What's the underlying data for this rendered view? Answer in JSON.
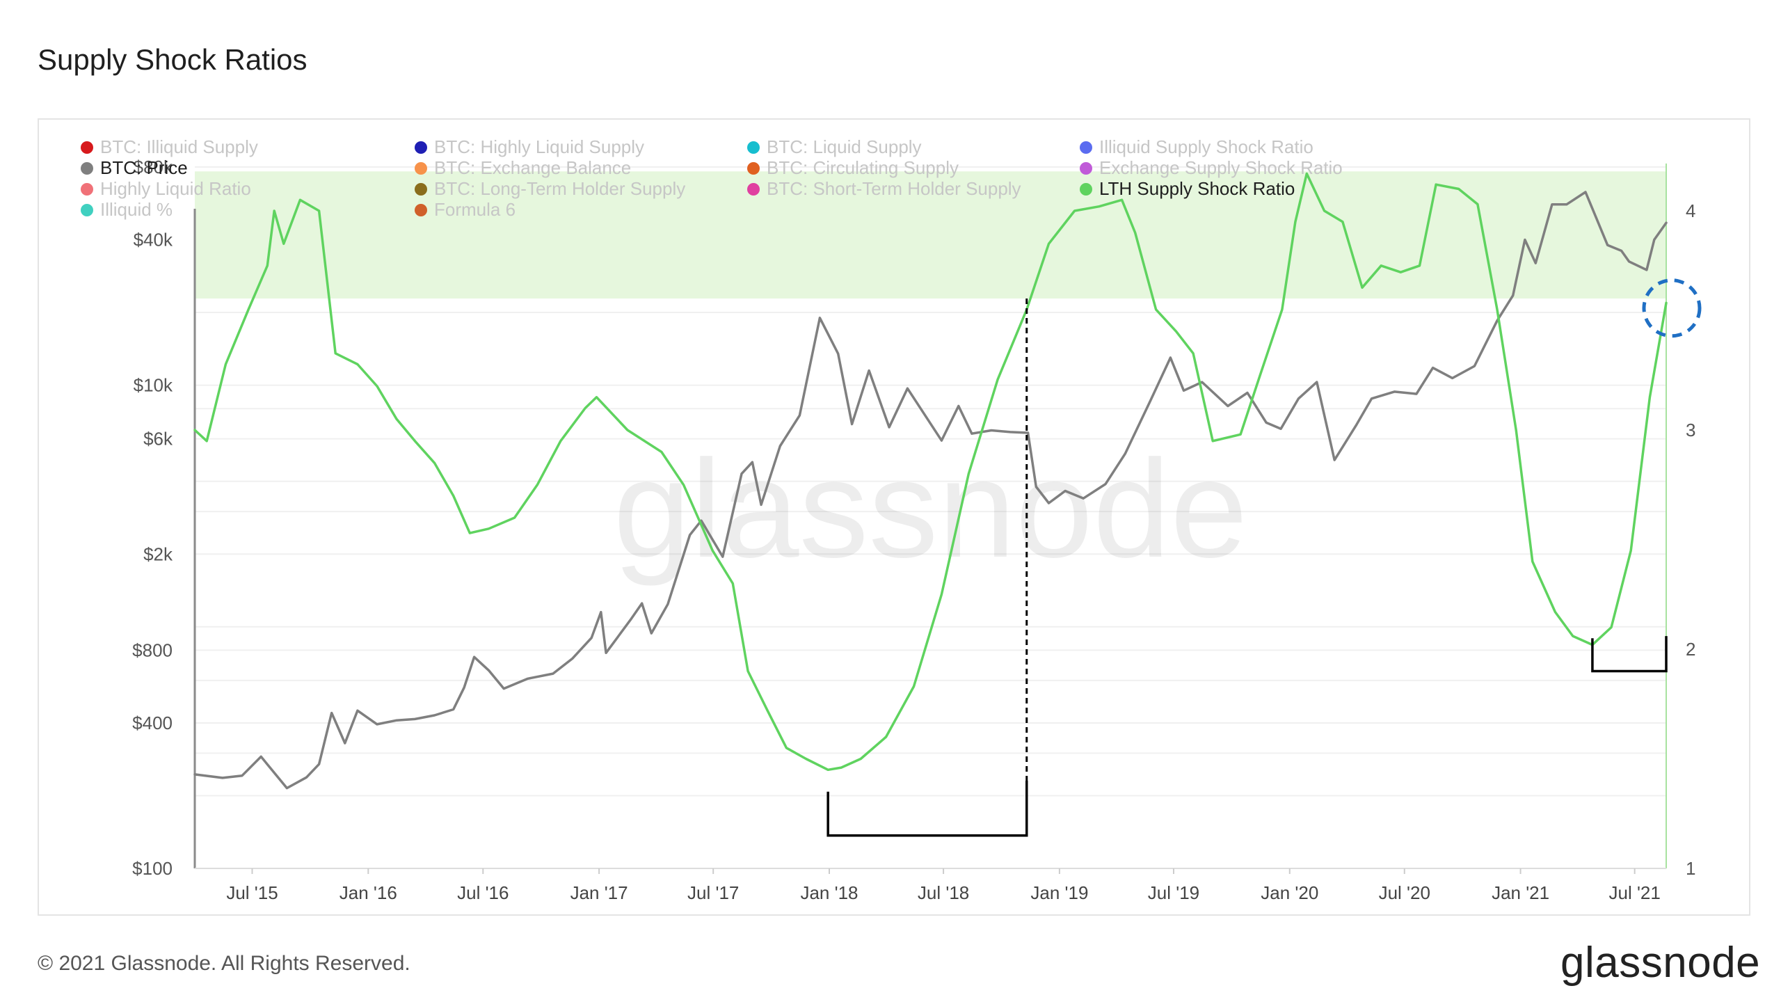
{
  "page": {
    "title": "Supply Shock Ratios",
    "copyright": "© 2021 Glassnode. All Rights Reserved.",
    "brand": "glassnode",
    "watermark": "glassnode"
  },
  "legend": [
    {
      "label": "BTC: Illiquid Supply",
      "color": "#d7191c",
      "active": false
    },
    {
      "label": "BTC: Highly Liquid Supply",
      "color": "#1f1fb4",
      "active": false
    },
    {
      "label": "BTC: Liquid Supply",
      "color": "#17becf",
      "active": false
    },
    {
      "label": "Illiquid Supply Shock Ratio",
      "color": "#5b6cf0",
      "active": false
    },
    {
      "label": "BTC: Price",
      "color": "#7f7f7f",
      "active": true
    },
    {
      "label": "BTC: Exchange Balance",
      "color": "#f7924a",
      "active": false
    },
    {
      "label": "BTC: Circulating Supply",
      "color": "#e06020",
      "active": false
    },
    {
      "label": "Exchange Supply Shock Ratio",
      "color": "#c05ad8",
      "active": false
    },
    {
      "label": "Highly Liquid Ratio",
      "color": "#f07178",
      "active": false
    },
    {
      "label": "BTC: Long-Term Holder Supply",
      "color": "#8a6d1c",
      "active": false
    },
    {
      "label": "BTC: Short-Term Holder Supply",
      "color": "#e040a0",
      "active": false
    },
    {
      "label": "LTH Supply Shock Ratio",
      "color": "#5fd35f",
      "active": true
    },
    {
      "label": "Illiquid %",
      "color": "#40d0c0",
      "active": false
    },
    {
      "label": "Formula 6",
      "color": "#d0602a",
      "active": false
    }
  ],
  "chart_data": {
    "type": "line",
    "x_ticks": [
      "Jul '15",
      "Jan '16",
      "Jul '16",
      "Jan '17",
      "Jul '17",
      "Jan '18",
      "Jul '18",
      "Jan '19",
      "Jul '19",
      "Jan '20",
      "Jul '20",
      "Jan '21",
      "Jul '21"
    ],
    "x_range": [
      "2015-04-01",
      "2021-08-20"
    ],
    "y_left": {
      "ticks": [
        "$100",
        "$400",
        "$800",
        "$2k",
        "$6k",
        "$10k",
        "$40k",
        "$80k"
      ],
      "tick_values": [
        100,
        400,
        800,
        2000,
        6000,
        10000,
        40000,
        80000
      ],
      "scale": "log",
      "range": [
        100,
        80000
      ]
    },
    "y_right": {
      "ticks": [
        "1",
        "2",
        "3",
        "4"
      ],
      "tick_values": [
        1,
        2,
        3,
        4
      ],
      "range": [
        1,
        4.2
      ]
    },
    "shaded_band": {
      "axis": "right",
      "from": 3.6,
      "to": 4.18,
      "color": "#e6f7dd"
    },
    "colors": {
      "price": "#7f7f7f",
      "ratio": "#5fd35f",
      "annotation": "#000000",
      "circle": "#1f6fc4"
    },
    "series": [
      {
        "name": "BTC: Price",
        "axis": "left",
        "points": [
          [
            "2015-04-01",
            245
          ],
          [
            "2015-05-15",
            237
          ],
          [
            "2015-06-15",
            242
          ],
          [
            "2015-07-15",
            290
          ],
          [
            "2015-08-25",
            215
          ],
          [
            "2015-09-25",
            238
          ],
          [
            "2015-10-15",
            270
          ],
          [
            "2015-11-04",
            440
          ],
          [
            "2015-11-25",
            330
          ],
          [
            "2015-12-15",
            450
          ],
          [
            "2016-01-15",
            395
          ],
          [
            "2016-02-15",
            410
          ],
          [
            "2016-03-15",
            415
          ],
          [
            "2016-04-15",
            430
          ],
          [
            "2016-05-15",
            455
          ],
          [
            "2016-06-01",
            560
          ],
          [
            "2016-06-17",
            750
          ],
          [
            "2016-07-10",
            660
          ],
          [
            "2016-08-03",
            555
          ],
          [
            "2016-09-10",
            610
          ],
          [
            "2016-10-20",
            640
          ],
          [
            "2016-11-20",
            740
          ],
          [
            "2016-12-20",
            900
          ],
          [
            "2017-01-04",
            1150
          ],
          [
            "2017-01-12",
            780
          ],
          [
            "2017-02-20",
            1070
          ],
          [
            "2017-03-10",
            1250
          ],
          [
            "2017-03-25",
            940
          ],
          [
            "2017-04-20",
            1240
          ],
          [
            "2017-05-25",
            2400
          ],
          [
            "2017-06-12",
            2750
          ],
          [
            "2017-07-16",
            1950
          ],
          [
            "2017-08-15",
            4300
          ],
          [
            "2017-09-01",
            4800
          ],
          [
            "2017-09-15",
            3200
          ],
          [
            "2017-10-15",
            5600
          ],
          [
            "2017-11-15",
            7500
          ],
          [
            "2017-12-17",
            19000
          ],
          [
            "2018-01-15",
            13500
          ],
          [
            "2018-02-06",
            6900
          ],
          [
            "2018-03-05",
            11500
          ],
          [
            "2018-04-06",
            6700
          ],
          [
            "2018-05-05",
            9700
          ],
          [
            "2018-06-28",
            5900
          ],
          [
            "2018-07-25",
            8200
          ],
          [
            "2018-08-15",
            6300
          ],
          [
            "2018-09-15",
            6500
          ],
          [
            "2018-10-15",
            6400
          ],
          [
            "2018-11-12",
            6350
          ],
          [
            "2018-11-25",
            3800
          ],
          [
            "2018-12-15",
            3250
          ],
          [
            "2019-01-10",
            3650
          ],
          [
            "2019-02-08",
            3400
          ],
          [
            "2019-03-15",
            3900
          ],
          [
            "2019-04-15",
            5200
          ],
          [
            "2019-05-25",
            8600
          ],
          [
            "2019-06-26",
            13000
          ],
          [
            "2019-07-17",
            9500
          ],
          [
            "2019-08-15",
            10300
          ],
          [
            "2019-09-25",
            8200
          ],
          [
            "2019-10-26",
            9300
          ],
          [
            "2019-11-25",
            7000
          ],
          [
            "2019-12-18",
            6600
          ],
          [
            "2020-01-15",
            8800
          ],
          [
            "2020-02-13",
            10300
          ],
          [
            "2020-03-12",
            4900
          ],
          [
            "2020-04-15",
            6800
          ],
          [
            "2020-05-10",
            8800
          ],
          [
            "2020-06-15",
            9400
          ],
          [
            "2020-07-20",
            9200
          ],
          [
            "2020-08-15",
            11800
          ],
          [
            "2020-09-15",
            10700
          ],
          [
            "2020-10-20",
            12000
          ],
          [
            "2020-11-25",
            18500
          ],
          [
            "2020-12-20",
            23500
          ],
          [
            "2021-01-08",
            40000
          ],
          [
            "2021-01-25",
            32000
          ],
          [
            "2021-02-20",
            56000
          ],
          [
            "2021-03-15",
            56000
          ],
          [
            "2021-04-14",
            63000
          ],
          [
            "2021-05-19",
            38000
          ],
          [
            "2021-06-10",
            36000
          ],
          [
            "2021-06-22",
            32500
          ],
          [
            "2021-07-20",
            30000
          ],
          [
            "2021-08-01",
            40000
          ],
          [
            "2021-08-20",
            47000
          ]
        ]
      },
      {
        "name": "LTH Supply Shock Ratio",
        "axis": "right",
        "points": [
          [
            "2015-04-01",
            3.0
          ],
          [
            "2015-04-20",
            2.95
          ],
          [
            "2015-05-20",
            3.3
          ],
          [
            "2015-06-25",
            3.55
          ],
          [
            "2015-07-25",
            3.75
          ],
          [
            "2015-08-05",
            4.0
          ],
          [
            "2015-08-20",
            3.85
          ],
          [
            "2015-09-15",
            4.05
          ],
          [
            "2015-10-15",
            4.0
          ],
          [
            "2015-11-10",
            3.35
          ],
          [
            "2015-12-15",
            3.3
          ],
          [
            "2016-01-15",
            3.2
          ],
          [
            "2016-02-15",
            3.05
          ],
          [
            "2016-03-15",
            2.95
          ],
          [
            "2016-04-15",
            2.85
          ],
          [
            "2016-05-15",
            2.7
          ],
          [
            "2016-06-10",
            2.53
          ],
          [
            "2016-07-10",
            2.55
          ],
          [
            "2016-08-20",
            2.6
          ],
          [
            "2016-09-25",
            2.75
          ],
          [
            "2016-11-01",
            2.95
          ],
          [
            "2016-12-10",
            3.1
          ],
          [
            "2016-12-28",
            3.15
          ],
          [
            "2017-02-15",
            3.0
          ],
          [
            "2017-04-10",
            2.9
          ],
          [
            "2017-05-15",
            2.75
          ],
          [
            "2017-06-30",
            2.45
          ],
          [
            "2017-08-01",
            2.3
          ],
          [
            "2017-08-25",
            1.9
          ],
          [
            "2017-09-25",
            1.72
          ],
          [
            "2017-10-25",
            1.55
          ],
          [
            "2017-11-25",
            1.5
          ],
          [
            "2017-12-30",
            1.45
          ],
          [
            "2018-01-20",
            1.46
          ],
          [
            "2018-02-20",
            1.5
          ],
          [
            "2018-04-01",
            1.6
          ],
          [
            "2018-05-15",
            1.83
          ],
          [
            "2018-06-28",
            2.25
          ],
          [
            "2018-08-10",
            2.8
          ],
          [
            "2018-09-25",
            3.23
          ],
          [
            "2018-11-10",
            3.55
          ],
          [
            "2018-12-15",
            3.85
          ],
          [
            "2019-01-25",
            4.0
          ],
          [
            "2019-03-05",
            4.02
          ],
          [
            "2019-04-10",
            4.05
          ],
          [
            "2019-05-01",
            3.9
          ],
          [
            "2019-06-03",
            3.55
          ],
          [
            "2019-07-05",
            3.45
          ],
          [
            "2019-08-01",
            3.35
          ],
          [
            "2019-09-01",
            2.95
          ],
          [
            "2019-10-15",
            2.98
          ],
          [
            "2019-11-15",
            3.25
          ],
          [
            "2019-12-20",
            3.55
          ],
          [
            "2020-01-10",
            3.95
          ],
          [
            "2020-01-28",
            4.17
          ],
          [
            "2020-02-25",
            4.0
          ],
          [
            "2020-03-25",
            3.95
          ],
          [
            "2020-04-25",
            3.65
          ],
          [
            "2020-05-25",
            3.75
          ],
          [
            "2020-06-25",
            3.72
          ],
          [
            "2020-07-25",
            3.75
          ],
          [
            "2020-08-20",
            4.12
          ],
          [
            "2020-09-25",
            4.1
          ],
          [
            "2020-10-25",
            4.03
          ],
          [
            "2020-11-25",
            3.55
          ],
          [
            "2020-12-25",
            3.0
          ],
          [
            "2021-01-20",
            2.4
          ],
          [
            "2021-02-25",
            2.17
          ],
          [
            "2021-03-25",
            2.06
          ],
          [
            "2021-04-25",
            2.02
          ],
          [
            "2021-05-25",
            2.1
          ],
          [
            "2021-06-25",
            2.45
          ],
          [
            "2021-07-25",
            3.15
          ],
          [
            "2021-08-20",
            3.58
          ]
        ]
      }
    ],
    "annotations": {
      "dashed_vertical": {
        "x": "2018-11-10",
        "from": 1.4,
        "to": 3.6
      },
      "brackets": [
        {
          "from": "2017-12-30",
          "to": "2018-11-10",
          "baseline": 1.15,
          "left_top": 1.35,
          "right_top": 1.4
        },
        {
          "from": "2021-04-25",
          "to": "2021-08-20",
          "baseline": 1.9,
          "left_top": 2.05,
          "right_top": 2.06
        }
      ],
      "dashed_circle": {
        "x": "2021-08-20",
        "value": 3.55
      }
    }
  }
}
